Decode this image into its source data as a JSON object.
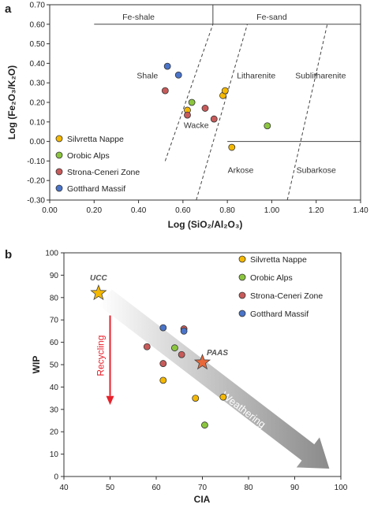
{
  "colors": {
    "silvretta": "#f5b800",
    "orobic": "#8cc63f",
    "strona": "#c85a5a",
    "gotthard": "#4a74c9",
    "ucc": "#f5b800",
    "paas": "#e8683a",
    "recycling": "#e8212b"
  },
  "chart_data": [
    {
      "type": "scatter",
      "panel_label": "a",
      "xlabel": "Log (SiO₂/Al₂O₃)",
      "ylabel": "Log (Fe₂O₃/K₂O)",
      "xlim": [
        0.0,
        1.4
      ],
      "ylim": [
        -0.3,
        0.7
      ],
      "xticks": [
        "0.00",
        "0.20",
        "0.40",
        "0.60",
        "0.80",
        "1.00",
        "1.20",
        "1.40"
      ],
      "yticks": [
        "-0.30",
        "-0.20",
        "-0.10",
        "0.00",
        "0.10",
        "0.20",
        "0.30",
        "0.40",
        "0.50",
        "0.60",
        "0.70"
      ],
      "field_labels": [
        {
          "text": "Fe-shale",
          "x": 0.4,
          "y": 0.64
        },
        {
          "text": "Fe-sand",
          "x": 1.0,
          "y": 0.64
        },
        {
          "text": "Shale",
          "x": 0.44,
          "y": 0.34
        },
        {
          "text": "Litharenite",
          "x": 0.93,
          "y": 0.34
        },
        {
          "text": "Sublitharenite",
          "x": 1.22,
          "y": 0.34
        },
        {
          "text": "Wacke",
          "x": 0.66,
          "y": 0.085
        },
        {
          "text": "Arkose",
          "x": 0.86,
          "y": -0.145
        },
        {
          "text": "Subarkose",
          "x": 1.2,
          "y": -0.145
        }
      ],
      "legend": [
        "Silvretta Nappe",
        "Orobic Alps",
        "Strona-Ceneri Zone",
        "Gotthard Massif"
      ],
      "series": [
        {
          "name": "Silvretta Nappe",
          "points": [
            [
              0.62,
              0.16
            ],
            [
              0.78,
              0.235
            ],
            [
              0.79,
              0.26
            ],
            [
              0.82,
              -0.03
            ]
          ]
        },
        {
          "name": "Orobic Alps",
          "points": [
            [
              0.64,
              0.2
            ],
            [
              0.98,
              0.08
            ]
          ]
        },
        {
          "name": "Strona-Ceneri Zone",
          "points": [
            [
              0.52,
              0.26
            ],
            [
              0.62,
              0.135
            ],
            [
              0.7,
              0.17
            ],
            [
              0.74,
              0.115
            ]
          ]
        },
        {
          "name": "Gotthard Massif",
          "points": [
            [
              0.53,
              0.385
            ],
            [
              0.58,
              0.34
            ]
          ]
        }
      ]
    },
    {
      "type": "scatter",
      "panel_label": "b",
      "xlabel": "CIA",
      "ylabel": "WIP",
      "xlim": [
        40,
        100
      ],
      "ylim": [
        0,
        100
      ],
      "xticks": [
        "40",
        "50",
        "60",
        "70",
        "80",
        "90",
        "100"
      ],
      "yticks": [
        "0",
        "10",
        "20",
        "30",
        "40",
        "50",
        "60",
        "70",
        "80",
        "90",
        "100"
      ],
      "legend": [
        "Silvretta Nappe",
        "Orobic Alps",
        "Strona-Ceneri Zone",
        "Gotthard Massif"
      ],
      "references": [
        {
          "label": "UCC",
          "x": 47.5,
          "y": 82
        },
        {
          "label": "PAAS",
          "x": 70,
          "y": 51
        }
      ],
      "annotations": [
        "Recycling",
        "Weathering"
      ],
      "series": [
        {
          "name": "Silvretta Nappe",
          "points": [
            [
              61.5,
              43
            ],
            [
              68.5,
              35
            ],
            [
              74.5,
              35.5
            ]
          ]
        },
        {
          "name": "Orobic Alps",
          "points": [
            [
              64,
              57.5
            ],
            [
              70.5,
              23
            ]
          ]
        },
        {
          "name": "Strona-Ceneri Zone",
          "points": [
            [
              58,
              58
            ],
            [
              61.5,
              50.5
            ],
            [
              65.5,
              54.5
            ],
            [
              66,
              66
            ]
          ]
        },
        {
          "name": "Gotthard Massif",
          "points": [
            [
              61.5,
              66.5
            ],
            [
              66,
              65
            ]
          ]
        }
      ]
    }
  ]
}
